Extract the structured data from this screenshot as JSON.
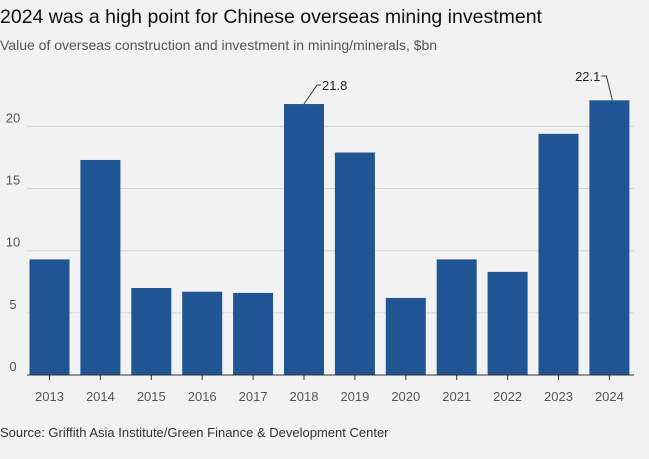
{
  "header": {
    "title": "2024 was a high point for Chinese overseas mining investment",
    "subtitle": "Value of overseas construction and investment in mining/minerals, $bn"
  },
  "footer": {
    "source": "Source: Griffith Asia Institute/Green Finance & Development Center"
  },
  "colors": {
    "bar": "#1f5593",
    "grid": "#d6d6d6",
    "axis": "#333333",
    "background": "#f2f2f2"
  },
  "chart_data": {
    "type": "bar",
    "title": "2024 was a high point for Chinese overseas mining investment",
    "subtitle": "Value of overseas construction and investment in mining/minerals, $bn",
    "xlabel": "",
    "ylabel": "",
    "categories": [
      "2013",
      "2014",
      "2015",
      "2016",
      "2017",
      "2018",
      "2019",
      "2020",
      "2021",
      "2022",
      "2023",
      "2024"
    ],
    "values": [
      9.3,
      17.3,
      7.0,
      6.7,
      6.6,
      21.8,
      17.9,
      6.2,
      9.3,
      8.3,
      19.4,
      22.1
    ],
    "yticks": [
      0,
      5,
      10,
      15,
      20
    ],
    "ylim": [
      0,
      23.5
    ],
    "grid": true,
    "annotations": [
      {
        "category": "2018",
        "label": "21.8"
      },
      {
        "category": "2024",
        "label": "22.1"
      }
    ]
  }
}
